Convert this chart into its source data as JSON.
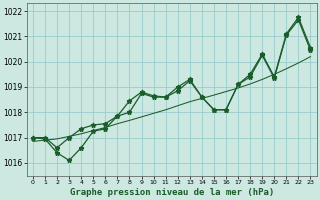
{
  "xlabel": "Graphe pression niveau de la mer (hPa)",
  "background_color": "#cce8e0",
  "grid_color": "#99cccc",
  "line_color": "#1a5c2a",
  "x_values": [
    0,
    1,
    2,
    3,
    4,
    5,
    6,
    7,
    8,
    9,
    10,
    11,
    12,
    13,
    14,
    15,
    16,
    17,
    18,
    19,
    20,
    21,
    22,
    23
  ],
  "line1_y": [
    1017.0,
    1017.0,
    1016.6,
    1017.0,
    1017.35,
    1017.5,
    1017.55,
    1017.85,
    1018.45,
    1018.8,
    1018.65,
    1018.6,
    1019.0,
    1019.3,
    1018.6,
    1018.1,
    1018.1,
    1019.1,
    1019.5,
    1020.3,
    1019.4,
    1021.1,
    1021.75,
    1020.55
  ],
  "line2_y": [
    1017.0,
    1016.95,
    1016.4,
    1016.1,
    1016.6,
    1017.25,
    1017.35,
    1017.85,
    1018.0,
    1018.75,
    1018.6,
    1018.6,
    1018.85,
    1019.25,
    1018.6,
    1018.1,
    1018.1,
    1019.1,
    1019.4,
    1020.25,
    1019.35,
    1021.05,
    1021.65,
    1020.45
  ],
  "line3_y": [
    1016.85,
    1016.9,
    1016.95,
    1017.05,
    1017.15,
    1017.28,
    1017.4,
    1017.55,
    1017.68,
    1017.82,
    1017.96,
    1018.1,
    1018.26,
    1018.42,
    1018.55,
    1018.68,
    1018.82,
    1018.96,
    1019.12,
    1019.3,
    1019.5,
    1019.72,
    1019.95,
    1020.2
  ],
  "ylim": [
    1015.5,
    1022.3
  ],
  "yticks": [
    1016,
    1017,
    1018,
    1019,
    1020,
    1021,
    1022
  ],
  "xlim": [
    -0.5,
    23.5
  ],
  "xticks": [
    0,
    1,
    2,
    3,
    4,
    5,
    6,
    7,
    8,
    9,
    10,
    11,
    12,
    13,
    14,
    15,
    16,
    17,
    18,
    19,
    20,
    21,
    22,
    23
  ]
}
